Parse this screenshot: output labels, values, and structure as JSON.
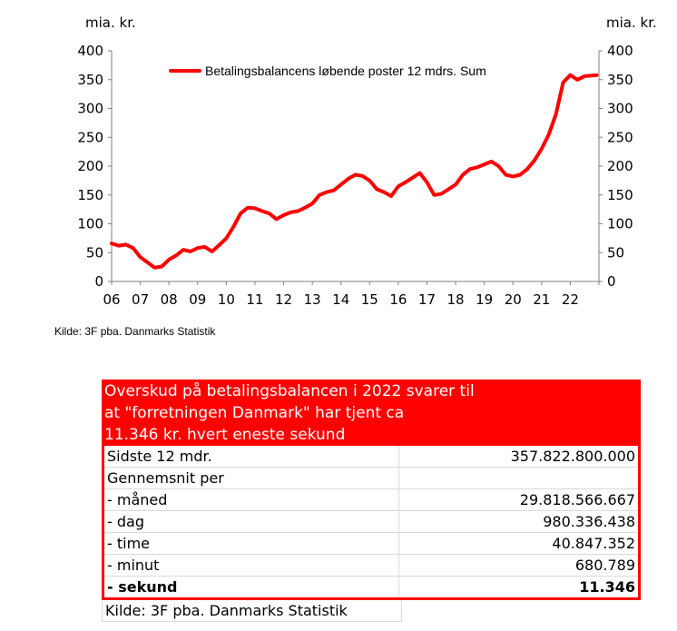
{
  "chart_data": {
    "type": "line",
    "unit_left": "mia. kr.",
    "unit_right": "mia. kr.",
    "ylim": [
      0,
      400
    ],
    "yticks": [
      "0",
      "50",
      "100",
      "150",
      "200",
      "250",
      "300",
      "350",
      "400"
    ],
    "xticks": [
      "06",
      "07",
      "08",
      "09",
      "10",
      "11",
      "12",
      "13",
      "14",
      "15",
      "16",
      "17",
      "18",
      "19",
      "20",
      "21",
      "22"
    ],
    "legend_position": "top",
    "series": [
      {
        "name": "Betalingsbalancens løbende poster 12 mdrs. Sum",
        "color": "#ff0000",
        "x": [
          2006.0,
          2006.25,
          2006.5,
          2006.75,
          2007.0,
          2007.25,
          2007.5,
          2007.75,
          2008.0,
          2008.25,
          2008.5,
          2008.75,
          2009.0,
          2009.25,
          2009.5,
          2009.75,
          2010.0,
          2010.25,
          2010.5,
          2010.75,
          2011.0,
          2011.25,
          2011.5,
          2011.75,
          2012.0,
          2012.25,
          2012.5,
          2012.75,
          2013.0,
          2013.25,
          2013.5,
          2013.75,
          2014.0,
          2014.25,
          2014.5,
          2014.75,
          2015.0,
          2015.25,
          2015.5,
          2015.75,
          2016.0,
          2016.25,
          2016.5,
          2016.75,
          2017.0,
          2017.25,
          2017.5,
          2017.75,
          2018.0,
          2018.25,
          2018.5,
          2018.75,
          2019.0,
          2019.25,
          2019.5,
          2019.75,
          2020.0,
          2020.25,
          2020.5,
          2020.75,
          2021.0,
          2021.25,
          2021.5,
          2021.75,
          2022.0,
          2022.25,
          2022.5,
          2022.75,
          2022.92
        ],
        "y": [
          66,
          62,
          64,
          58,
          42,
          33,
          24,
          26,
          38,
          45,
          55,
          52,
          58,
          60,
          52,
          63,
          75,
          95,
          118,
          128,
          127,
          122,
          118,
          108,
          115,
          120,
          122,
          128,
          135,
          150,
          155,
          158,
          168,
          178,
          185,
          183,
          175,
          160,
          155,
          148,
          165,
          172,
          180,
          188,
          172,
          150,
          152,
          160,
          168,
          185,
          195,
          198,
          203,
          208,
          200,
          185,
          182,
          185,
          195,
          210,
          230,
          255,
          290,
          345,
          358,
          350,
          356,
          357,
          358
        ]
      }
    ]
  },
  "source_chart": "Kilde: 3F pba. Danmarks Statistik",
  "table": {
    "banner_lines": [
      "Overskud på betalingsbalancen i 2022 svarer til",
      "at \"forretningen Danmark\" har tjent ca",
      "11.346 kr. hvert eneste sekund"
    ],
    "rows": [
      {
        "label": "Sidste 12 mdr.",
        "value": "357.822.800.000"
      },
      {
        "label": "Gennemsnit per",
        "value": ""
      },
      {
        "label": "- måned",
        "value": "29.818.566.667"
      },
      {
        "label": "- dag",
        "value": "980.336.438"
      },
      {
        "label": "- time",
        "value": "40.847.352"
      },
      {
        "label": "- minut",
        "value": "680.789"
      },
      {
        "label": "- sekund",
        "value": "11.346"
      }
    ],
    "footer": "Kilde: 3F pba. Danmarks Statistik"
  }
}
